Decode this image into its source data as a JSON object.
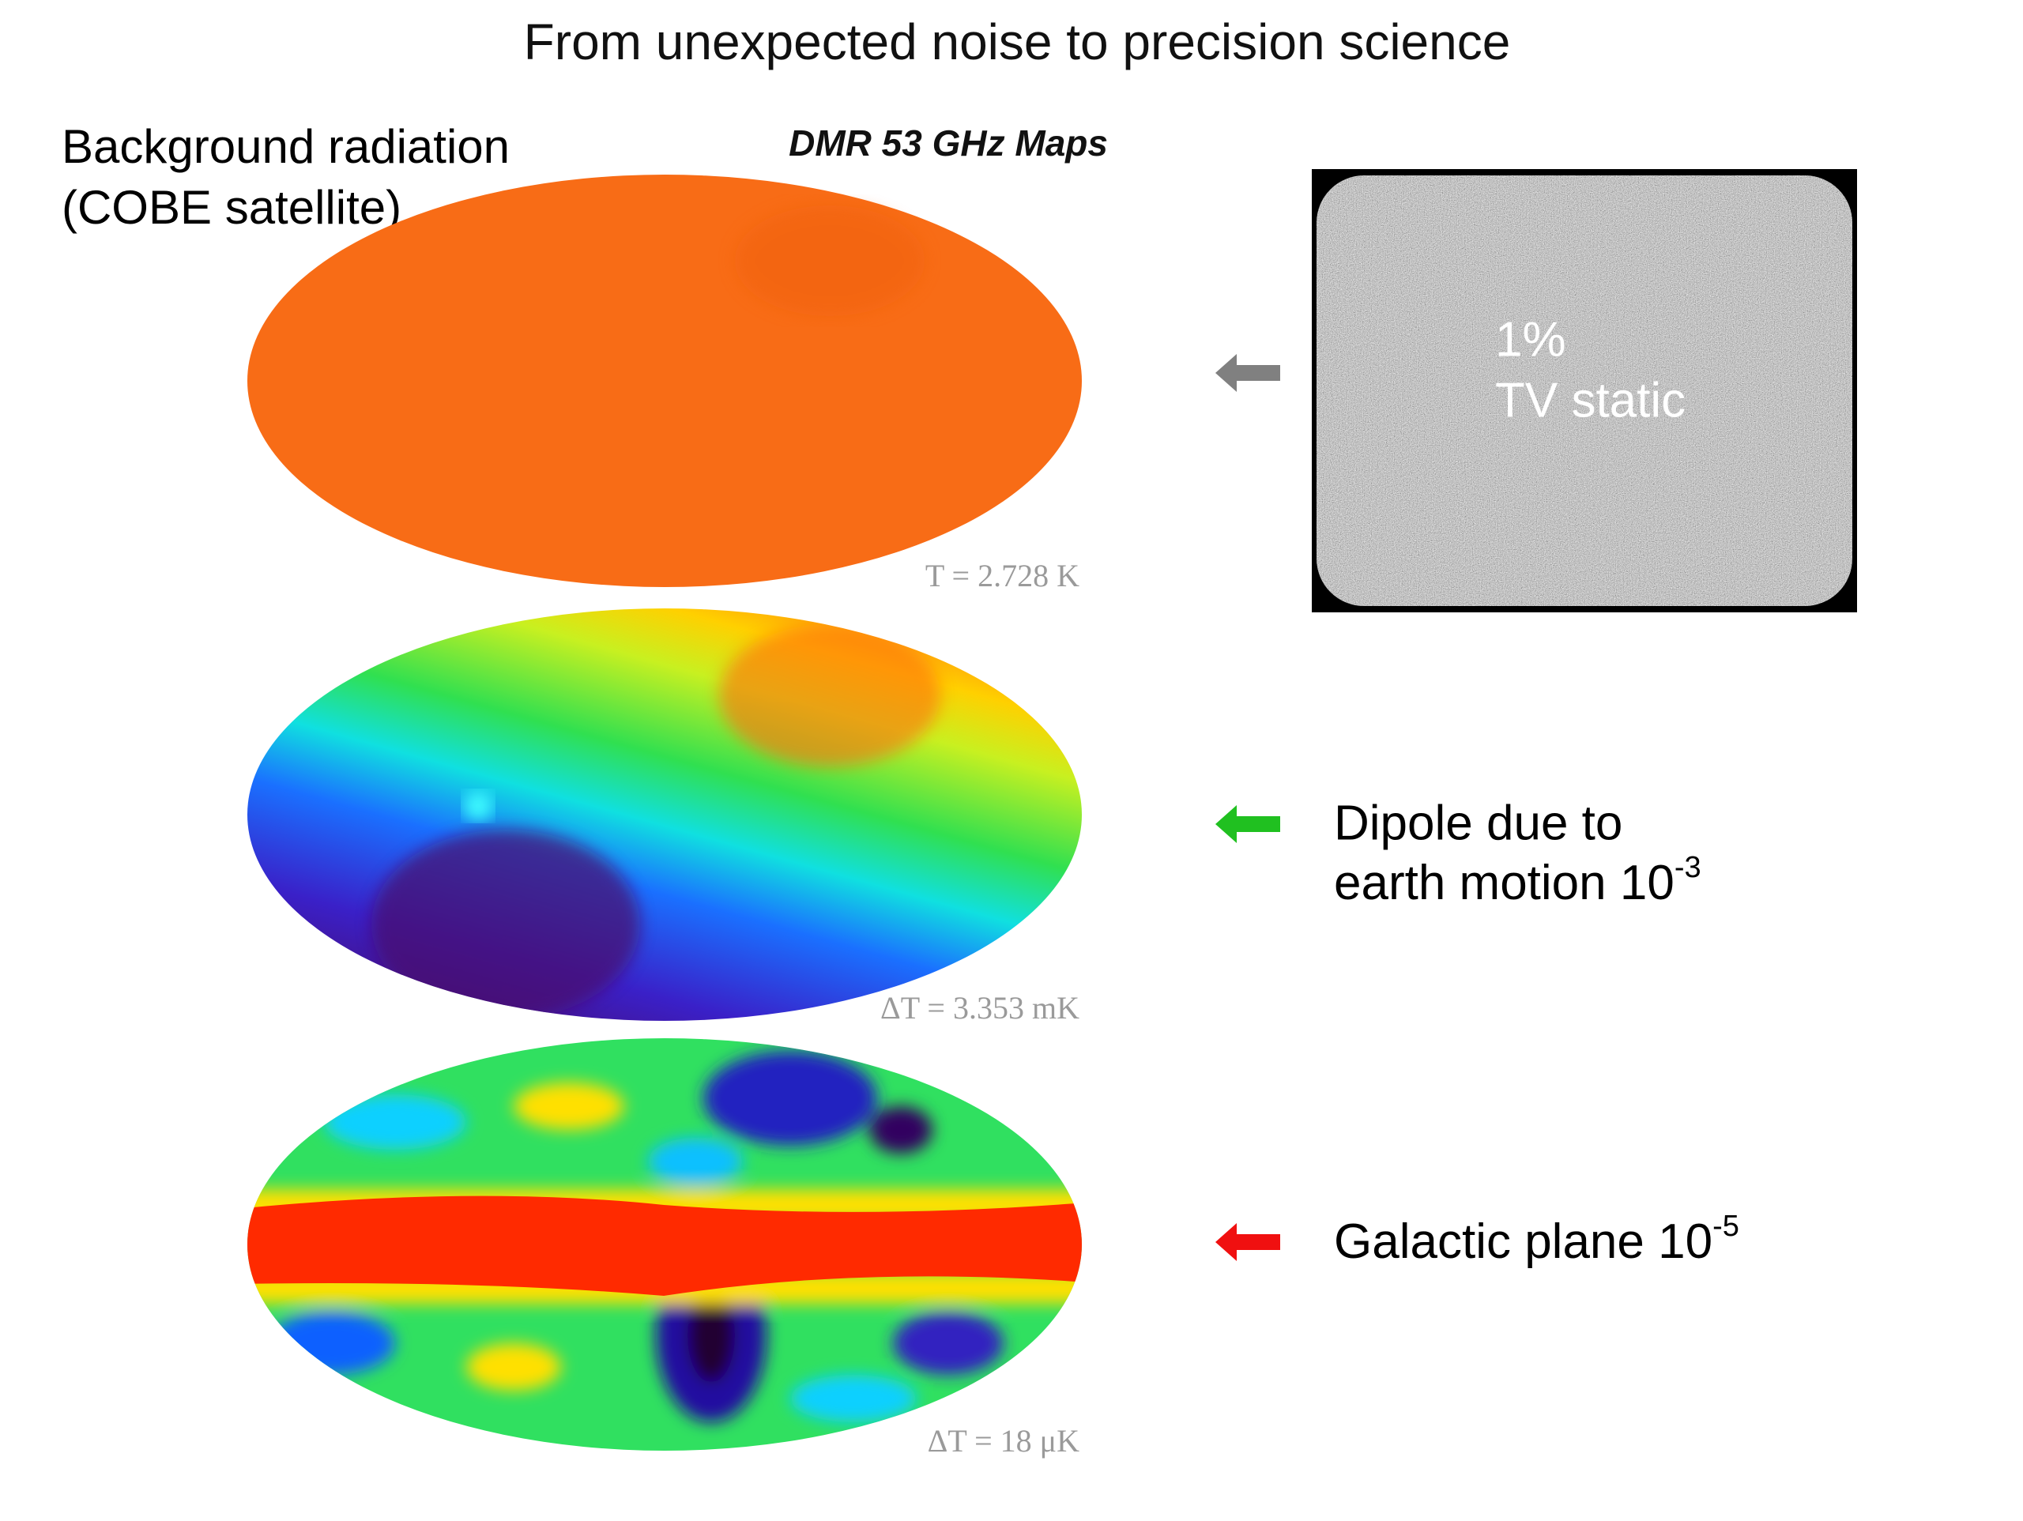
{
  "title": "From unexpected noise to precision science",
  "side_label": {
    "line1": "Background radiation",
    "line2": "(COBE satellite)"
  },
  "maps_title": "DMR 53 GHz Maps",
  "maps": [
    {
      "caption": "T = 2.728 K"
    },
    {
      "caption": "ΔT = 3.353 mK"
    },
    {
      "caption": "ΔT = 18 μK"
    }
  ],
  "tv": {
    "line1": "1%",
    "line2": "TV static"
  },
  "notes": [
    {
      "line1": "Dipole due to",
      "line2": "earth motion 10",
      "exponent": "-3"
    },
    {
      "line1": "Galactic plane 10",
      "exponent": "-5"
    }
  ]
}
